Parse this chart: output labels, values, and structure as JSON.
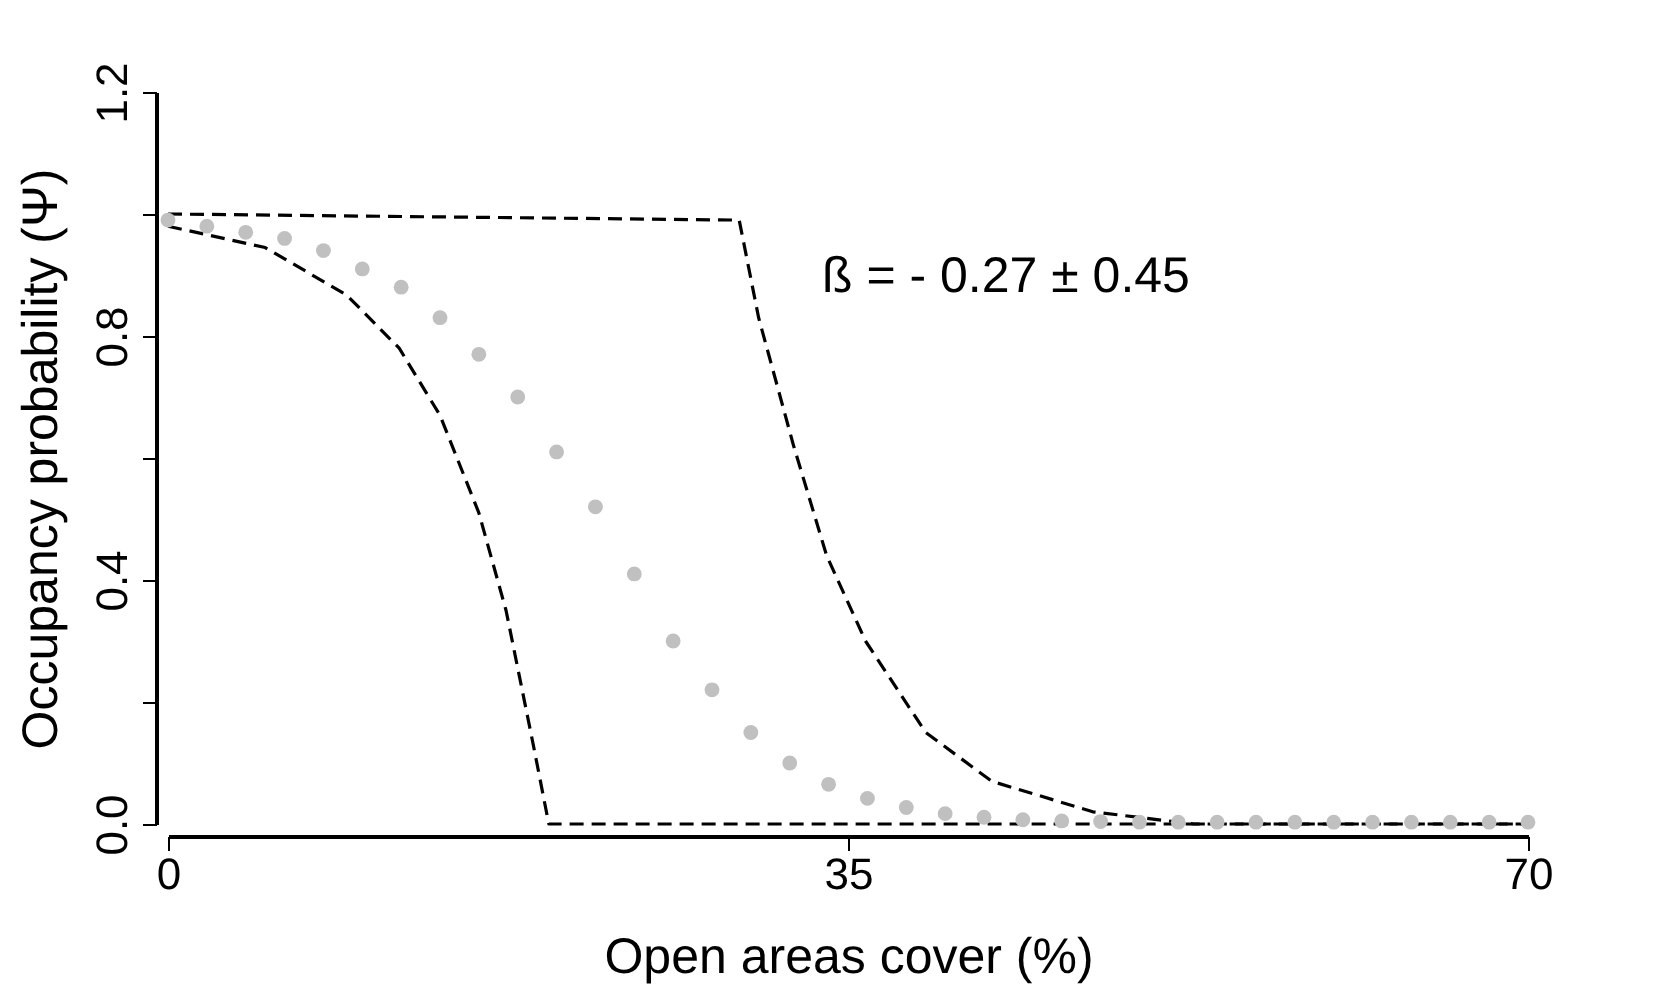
{
  "chart_data": {
    "type": "line",
    "xlabel": "Open areas cover (%)",
    "ylabel": "Occupancy probability (Ψ)",
    "annotations": [
      "ß = - 0.27 ± 0.45"
    ],
    "xlim": [
      0,
      70
    ],
    "xticks": [
      0,
      35,
      70
    ],
    "ylim": [
      0,
      1.2
    ],
    "yticks": [
      {
        "value": 0,
        "label": "0.0"
      },
      {
        "value": 0.2,
        "label": null
      },
      0.4,
      {
        "value": 0.6,
        "label": null
      },
      0.8,
      {
        "value": 1.0,
        "label": null
      },
      1.2
    ],
    "grid": false,
    "series": [
      {
        "type": "scatter",
        "marker": "circle",
        "color": "#c0c0c0",
        "x": [
          0,
          2,
          4,
          6,
          8,
          10,
          12,
          14,
          16,
          18,
          20,
          22,
          24,
          26,
          28,
          30,
          32,
          34,
          36,
          38,
          40,
          42,
          44,
          46,
          48,
          50,
          52,
          54,
          56,
          58,
          60,
          62,
          64,
          66,
          68,
          70
        ],
        "values": [
          0.99,
          0.98,
          0.97,
          0.96,
          0.94,
          0.91,
          0.88,
          0.83,
          0.77,
          0.7,
          0.61,
          0.52,
          0.41,
          0.3,
          0.22,
          0.15,
          0.1,
          0.065,
          0.042,
          0.027,
          0.017,
          0.011,
          0.007,
          0.005,
          0.004,
          0.003,
          0.003,
          0.003,
          0.003,
          0.003,
          0.003,
          0.003,
          0.003,
          0.003,
          0.003,
          0.003
        ]
      },
      {
        "line_style": "dashed",
        "color": "#000000",
        "x": [
          0,
          5.0,
          9.2,
          11.9,
          14.0,
          16.0,
          17.4,
          18.8,
          19.6,
          70
        ],
        "values": [
          0.98,
          0.945,
          0.867,
          0.78,
          0.67,
          0.51,
          0.35,
          0.13,
          0.0,
          0.0
        ]
      },
      {
        "line_style": "dashed",
        "color": "#000000",
        "x": [
          0,
          29.4,
          30.4,
          32.2,
          33.9,
          35.9,
          39.0,
          42.4,
          47.6,
          52.8,
          70
        ],
        "values": [
          1.0,
          0.99,
          0.83,
          0.62,
          0.44,
          0.3,
          0.15,
          0.07,
          0.02,
          0.0,
          0.0
        ]
      }
    ]
  }
}
